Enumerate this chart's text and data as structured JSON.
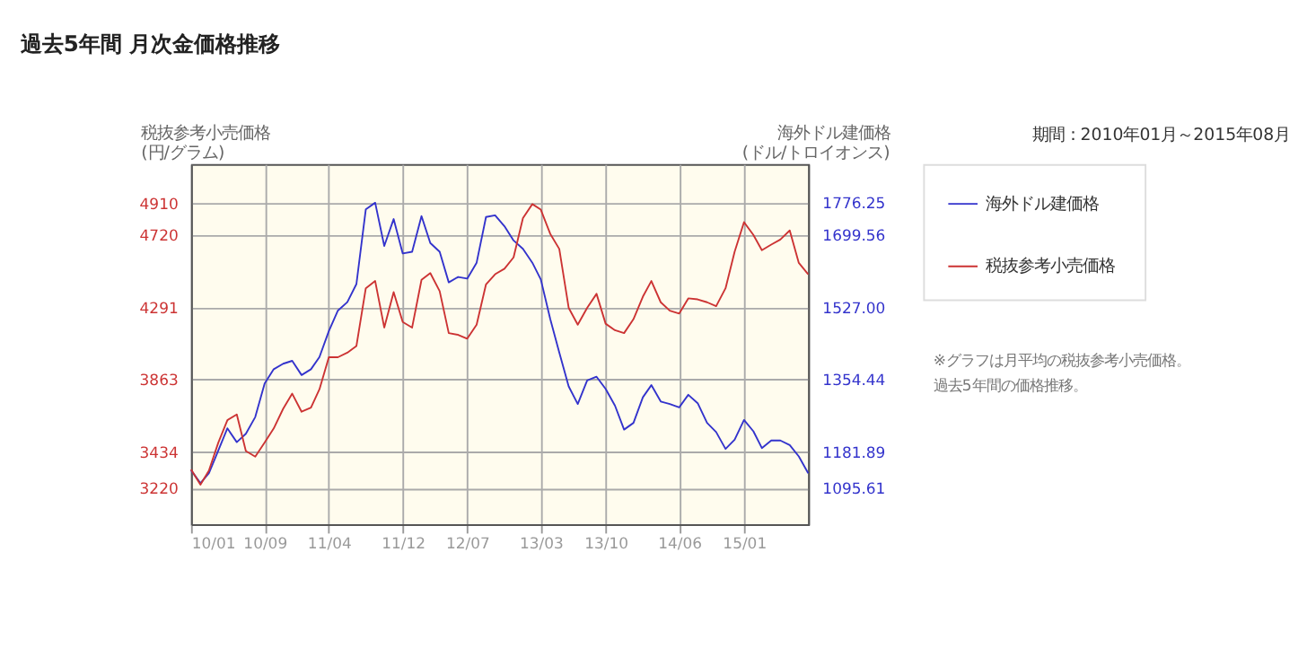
{
  "chart_data": {
    "type": "line",
    "title": "過去5年間 月次金価格推移",
    "ylabel": "税抜参考小売価格\n(円/グラム)",
    "y2label": "海外ドル建価格\n(ドル/トロイオンス)",
    "annotations": [
      "期間：2010年01月～2015年08月",
      "※グラフは月平均の税抜参考小売価格。過去5年間の価格推移。"
    ],
    "x": [
      "2010-01",
      "2010-02",
      "2010-03",
      "2010-04",
      "2010-05",
      "2010-06",
      "2010-07",
      "2010-08",
      "2010-09",
      "2010-10",
      "2010-11",
      "2010-12",
      "2011-01",
      "2011-02",
      "2011-03",
      "2011-04",
      "2011-05",
      "2011-06",
      "2011-07",
      "2011-08",
      "2011-09",
      "2011-10",
      "2011-11",
      "2011-12",
      "2012-01",
      "2012-02",
      "2012-03",
      "2012-04",
      "2012-05",
      "2012-06",
      "2012-07",
      "2012-08",
      "2012-09",
      "2012-10",
      "2012-11",
      "2012-12",
      "2013-01",
      "2013-02",
      "2013-03",
      "2013-04",
      "2013-05",
      "2013-06",
      "2013-07",
      "2013-08",
      "2013-09",
      "2013-10",
      "2013-11",
      "2013-12",
      "2014-01",
      "2014-02",
      "2014-03",
      "2014-04",
      "2014-05",
      "2014-06",
      "2014-07",
      "2014-08",
      "2014-09",
      "2014-10",
      "2014-11",
      "2014-12",
      "2015-01",
      "2015-02",
      "2015-03",
      "2015-04",
      "2015-05",
      "2015-06",
      "2015-07",
      "2015-08"
    ],
    "series": [
      {
        "name": "海外ドル建価格",
        "color": "#3333cc",
        "axis": "y2",
        "values": [
          1138,
          1107,
          1131,
          1185,
          1238,
          1205,
          1225,
          1265,
          1345,
          1379,
          1392,
          1399,
          1365,
          1379,
          1408,
          1470,
          1519,
          1539,
          1582,
          1760,
          1776,
          1673,
          1737,
          1655,
          1659,
          1744,
          1680,
          1659,
          1586,
          1599,
          1595,
          1633,
          1742,
          1746,
          1720,
          1686,
          1666,
          1633,
          1593,
          1499,
          1419,
          1338,
          1296,
          1352,
          1361,
          1332,
          1292,
          1235,
          1251,
          1312,
          1341,
          1302,
          1296,
          1288,
          1318,
          1298,
          1251,
          1229,
          1189,
          1211,
          1258,
          1231,
          1191,
          1209,
          1209,
          1198,
          1171,
          1131
        ]
      },
      {
        "name": "税抜参考小売価格",
        "color": "#cc3333",
        "values": [
          3330,
          3240,
          3323,
          3489,
          3622,
          3656,
          3439,
          3406,
          3489,
          3573,
          3689,
          3779,
          3672,
          3696,
          3805,
          3995,
          3995,
          4022,
          4061,
          4404,
          4447,
          4171,
          4381,
          4204,
          4171,
          4454,
          4494,
          4387,
          4138,
          4128,
          4105,
          4188,
          4427,
          4487,
          4520,
          4587,
          4820,
          4903,
          4870,
          4727,
          4637,
          4288,
          4188,
          4288,
          4371,
          4194,
          4155,
          4138,
          4221,
          4354,
          4447,
          4321,
          4271,
          4254,
          4344,
          4338,
          4321,
          4298,
          4404,
          4620,
          4796,
          4720,
          4630,
          4663,
          4693,
          4747,
          4554,
          4487
        ]
      }
    ],
    "xlim": [
      "2010-01",
      "2015-08"
    ],
    "xticks": [
      {
        "value": "2010-01",
        "label": "10/01"
      },
      {
        "value": "2010-09",
        "label": "10/09"
      },
      {
        "value": "2011-04",
        "label": "11/04"
      },
      {
        "value": "2011-12",
        "label": "11/12"
      },
      {
        "value": "2012-07",
        "label": "12/07"
      },
      {
        "value": "2013-03",
        "label": "13/03"
      },
      {
        "value": "2013-10",
        "label": "13/10"
      },
      {
        "value": "2014-06",
        "label": "14/06"
      },
      {
        "value": "2015-01",
        "label": "15/01"
      }
    ],
    "ylim": [
      3005,
      5140
    ],
    "yticks": [
      3220,
      3434,
      3863,
      4291,
      4720,
      4910
    ],
    "y2lim": [
      1009.3,
      1868.1
    ],
    "y2ticks": [
      1095.61,
      1181.89,
      1354.44,
      {
        "value": 1527,
        "label": "1527.00"
      },
      1699.56,
      1776.25
    ],
    "grid": true,
    "legend": "right",
    "marker": "none",
    "line_style": "solid"
  }
}
